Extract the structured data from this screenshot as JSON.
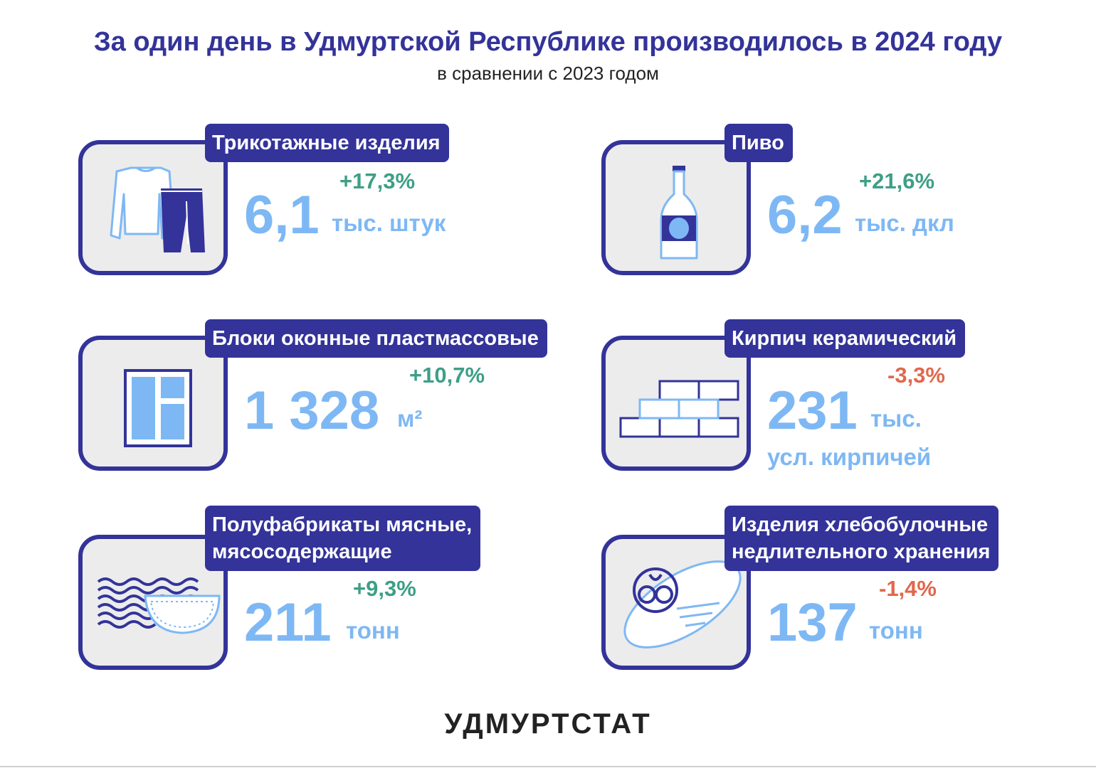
{
  "header": {
    "title": "За один день в Удмуртской Республике производилось в 2024 году",
    "subtitle": "в сравнении с 2023 годом"
  },
  "items": [
    {
      "label": "Трикотажные изделия",
      "value": "6,1",
      "unit": "тыс. штук",
      "change": "+17,3%",
      "icon": "knitwear-icon"
    },
    {
      "label": "Пиво",
      "value": "6,2",
      "unit": "тыс. дкл",
      "change": "+21,6%",
      "icon": "beer-bottle-icon"
    },
    {
      "label": "Блоки оконные пластмассовые",
      "value": "1 328",
      "unit": "м²",
      "change": "+10,7%",
      "icon": "window-icon"
    },
    {
      "label": "Кирпич керамический",
      "value": "231",
      "unit": "тыс.",
      "unit2": "усл. кирпичей",
      "change": "-3,3%",
      "icon": "brick-icon"
    },
    {
      "label_line1": "Полуфабрикаты мясные,",
      "label_line2": "мясосодержащие",
      "value": "211",
      "unit": "тонн",
      "change": "+9,3%",
      "icon": "dumplings-icon"
    },
    {
      "label_line1": "Изделия хлебобулочные",
      "label_line2": "недлительного хранения",
      "value": "137",
      "unit": "тонн",
      "change": "-1,4%",
      "icon": "bread-icon"
    }
  ],
  "footer": {
    "brand": "УДМУРТСТАТ"
  },
  "colors": {
    "dark_blue": "#33339a",
    "light_blue": "#7eb8f4",
    "up_green": "#3d9f86",
    "down_red": "#e0684d"
  }
}
